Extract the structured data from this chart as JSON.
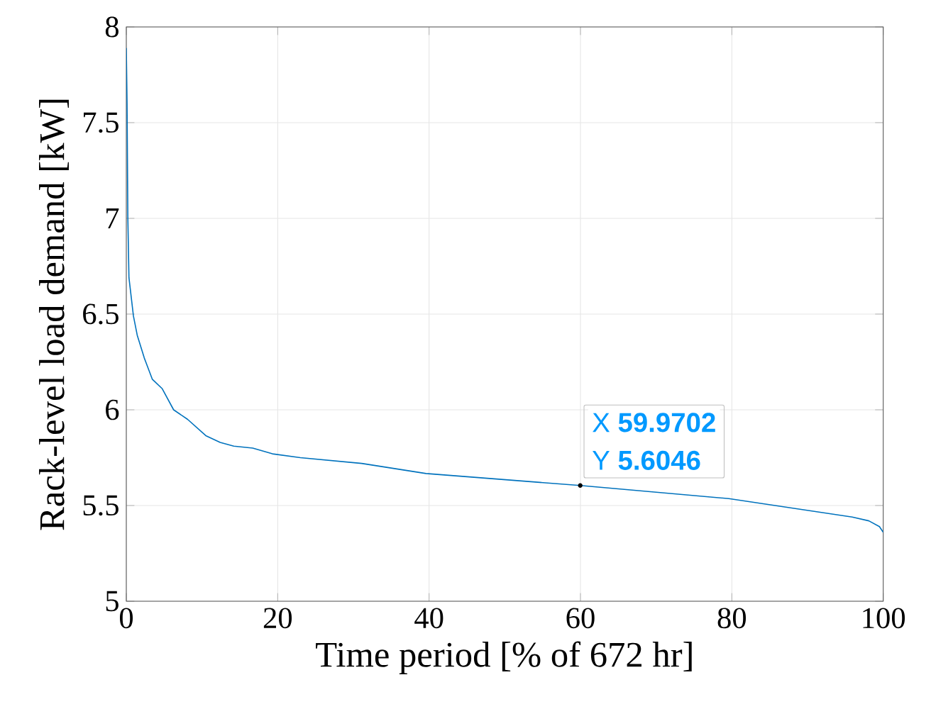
{
  "chart_data": {
    "type": "line",
    "xlabel": "Time period [% of 672 hr]",
    "ylabel": "Rack-level load demand [kW]",
    "x": [
      0,
      0.1,
      0.2,
      0.35,
      0.94,
      1.44,
      2.38,
      3.43,
      4.75,
      6.25,
      8.1,
      10.5,
      12.4,
      14.2,
      16.7,
      19.3,
      23,
      31.1,
      39.6,
      59.9702,
      79.6,
      95.9,
      98.1,
      99.5,
      100
    ],
    "series": [
      {
        "color": "#0072bd",
        "values": [
          7.89,
          7.6,
          7.01,
          6.69,
          6.49,
          6.39,
          6.27,
          6.16,
          6.11,
          6.0,
          5.95,
          5.865,
          5.83,
          5.81,
          5.8,
          5.77,
          5.75,
          5.72,
          5.667,
          5.6046,
          5.536,
          5.44,
          5.42,
          5.39,
          5.36
        ]
      }
    ],
    "xlim": [
      0,
      100
    ],
    "ylim": [
      5,
      8
    ],
    "xticks": [
      0,
      20,
      40,
      60,
      80,
      100
    ],
    "yticks": [
      5,
      5.5,
      6,
      6.5,
      7,
      7.5,
      8
    ],
    "grid": true,
    "annotations": [
      {
        "text": "X **59.9702**",
        "x": 59.9702,
        "y": 5.6046
      },
      {
        "text": "Y **5.6046**",
        "x": 59.9702,
        "y": 5.6046
      }
    ]
  }
}
